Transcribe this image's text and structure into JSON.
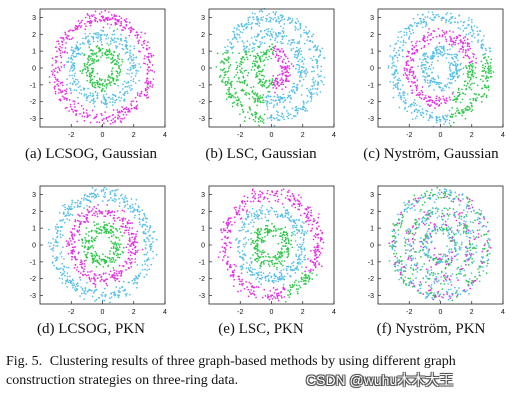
{
  "figure": {
    "caption_label": "Fig. 5.",
    "caption_text": "Clustering results of three graph-based methods by using different graph construction strategies on three-ring data.",
    "watermark": "CSDN @wuhu木木大王"
  },
  "colors": {
    "cluster_magenta": "#e62ee6",
    "cluster_cyan": "#55bfe8",
    "cluster_green": "#2ec84a"
  },
  "chart_data": [
    {
      "type": "scatter",
      "subcaption": "(a) LCSOG, Gaussian",
      "xlim": [
        -4,
        4
      ],
      "ylim": [
        -3.5,
        3.5
      ],
      "xticks": [
        "-2",
        "0",
        "2",
        "4"
      ],
      "yticks": [
        "3",
        "2",
        "1",
        "0",
        "-1",
        "-2",
        "-3"
      ],
      "rings": [
        {
          "radius": 1.0,
          "cluster": "green"
        },
        {
          "radius": 2.0,
          "cluster": "cyan"
        },
        {
          "radius": 3.0,
          "cluster": "magenta"
        }
      ],
      "mixing": "none"
    },
    {
      "type": "scatter",
      "subcaption": "(b) LSC, Gaussian",
      "xlim": [
        -4,
        4
      ],
      "ylim": [
        -3.5,
        3.5
      ],
      "xticks": [
        "-2",
        "0",
        "2",
        "4"
      ],
      "yticks": [
        "3",
        "2",
        "1",
        "0",
        "-1",
        "-2",
        "-3"
      ],
      "rings": [
        {
          "radius": 1.0,
          "cluster": "magenta"
        },
        {
          "radius": 2.0,
          "cluster": "cyan"
        },
        {
          "radius": 3.0,
          "cluster": "cyan"
        }
      ],
      "mixing": "left-half-green"
    },
    {
      "type": "scatter",
      "subcaption": "(c) Nyström, Gaussian",
      "xlim": [
        -4,
        4
      ],
      "ylim": [
        -3.5,
        3.5
      ],
      "xticks": [
        "-2",
        "0",
        "2",
        "4"
      ],
      "yticks": [
        "3",
        "2",
        "1",
        "0",
        "-1",
        "-2",
        "-3"
      ],
      "rings": [
        {
          "radius": 1.0,
          "cluster": "cyan"
        },
        {
          "radius": 2.0,
          "cluster": "magenta"
        },
        {
          "radius": 3.0,
          "cluster": "cyan"
        }
      ],
      "mixing": "top-magenta-right-green"
    },
    {
      "type": "scatter",
      "subcaption": "(d) LCSOG, PKN",
      "xlim": [
        -4,
        4
      ],
      "ylim": [
        -3.5,
        3.5
      ],
      "xticks": [
        "-2",
        "0",
        "2",
        "4"
      ],
      "yticks": [
        "3",
        "2",
        "1",
        "0",
        "-1",
        "-2",
        "-3"
      ],
      "rings": [
        {
          "radius": 1.0,
          "cluster": "green"
        },
        {
          "radius": 2.0,
          "cluster": "magenta"
        },
        {
          "radius": 3.0,
          "cluster": "cyan"
        }
      ],
      "mixing": "none"
    },
    {
      "type": "scatter",
      "subcaption": "(e) LSC, PKN",
      "xlim": [
        -4,
        4
      ],
      "ylim": [
        -3.5,
        3.5
      ],
      "xticks": [
        "-2",
        "0",
        "2",
        "4"
      ],
      "yticks": [
        "3",
        "2",
        "1",
        "0",
        "-1",
        "-2",
        "-3"
      ],
      "rings": [
        {
          "radius": 1.0,
          "cluster": "green"
        },
        {
          "radius": 2.0,
          "cluster": "cyan"
        },
        {
          "radius": 3.0,
          "cluster": "magenta"
        }
      ],
      "mixing": "bottom-right-green"
    },
    {
      "type": "scatter",
      "subcaption": "(f) Nyström, PKN",
      "xlim": [
        -4,
        4
      ],
      "ylim": [
        -3.5,
        3.5
      ],
      "xticks": [
        "-2",
        "0",
        "2",
        "4"
      ],
      "yticks": [
        "3",
        "2",
        "1",
        "0",
        "-1",
        "-2",
        "-3"
      ],
      "rings": [
        {
          "radius": 1.0,
          "cluster": "mixed"
        },
        {
          "radius": 2.0,
          "cluster": "mixed"
        },
        {
          "radius": 3.0,
          "cluster": "mixed"
        }
      ],
      "mixing": "random"
    }
  ]
}
